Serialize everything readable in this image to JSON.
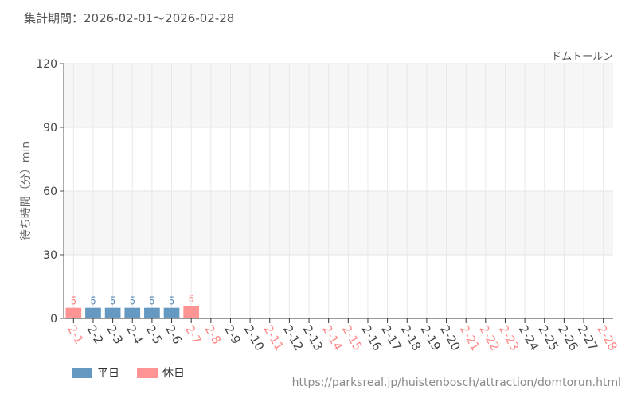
{
  "header": {
    "period": "集計期間：2026-02-01～2026-02-28",
    "attraction": "ドムトールン"
  },
  "footer": {
    "url": "https://parksreal.jp/huistenbosch/attraction/domtorun.html"
  },
  "colors": {
    "weekday": "#6699c2",
    "holiday": "#ff9494",
    "weekday_label": "#5588bb",
    "holiday_label": "#ff7777"
  },
  "chart_data": {
    "type": "bar",
    "ylabel": "待ち時間（分）min",
    "ylim": [
      0,
      120
    ],
    "yticks": [
      "0",
      "30",
      "60",
      "90",
      "120"
    ],
    "grid": true,
    "legend": [
      {
        "name": "平日",
        "key": "weekday"
      },
      {
        "name": "休日",
        "key": "holiday"
      }
    ],
    "legend_position": "bottom-left",
    "categories": [
      "2-1",
      "2-2",
      "2-3",
      "2-4",
      "2-5",
      "2-6",
      "2-7",
      "2-8",
      "2-9",
      "2-10",
      "2-11",
      "2-12",
      "2-13",
      "2-14",
      "2-15",
      "2-16",
      "2-17",
      "2-18",
      "2-19",
      "2-20",
      "2-21",
      "2-22",
      "2-23",
      "2-24",
      "2-25",
      "2-26",
      "2-27",
      "2-28"
    ],
    "holidays": [
      "2-1",
      "2-7",
      "2-8",
      "2-11",
      "2-14",
      "2-15",
      "2-21",
      "2-22",
      "2-23",
      "2-28"
    ],
    "values": [
      5,
      5,
      5,
      5,
      5,
      5,
      6,
      null,
      null,
      null,
      null,
      null,
      null,
      null,
      null,
      null,
      null,
      null,
      null,
      null,
      null,
      null,
      null,
      null,
      null,
      null,
      null,
      null
    ]
  }
}
